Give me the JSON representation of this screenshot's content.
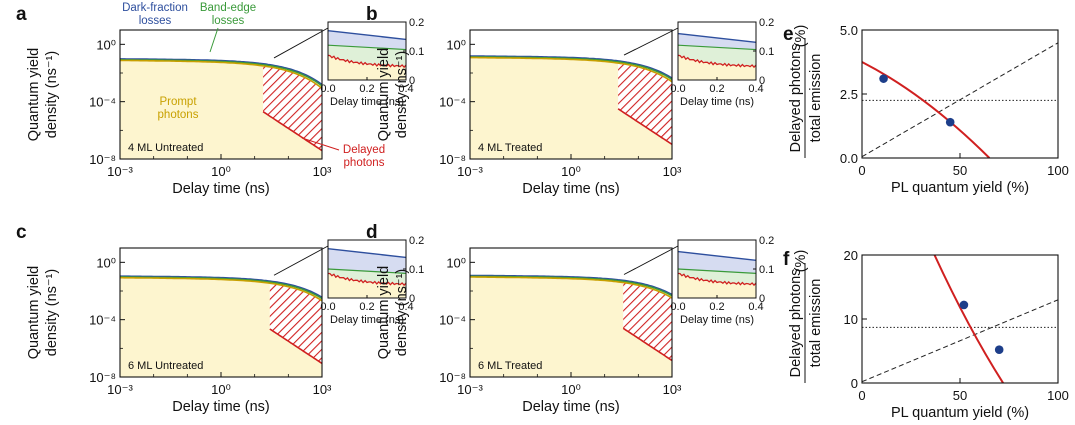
{
  "figure": {
    "decay_panels": [
      {
        "letter": "a",
        "sample": "4 ML Untreated",
        "plateau_y_exp": -1.1,
        "knee_x_exp": 1.2,
        "delayed": true,
        "annotations": true
      },
      {
        "letter": "b",
        "sample": "4 ML Treated",
        "plateau_y_exp": -0.9,
        "knee_x_exp": 1.35,
        "delayed": true,
        "annotations": false
      },
      {
        "letter": "c",
        "sample": "6 ML Untreated",
        "plateau_y_exp": -1.05,
        "knee_x_exp": 1.4,
        "delayed": true,
        "annotations": false
      },
      {
        "letter": "d",
        "sample": "6 ML Treated",
        "plateau_y_exp": -1.0,
        "knee_x_exp": 1.5,
        "delayed": true,
        "annotations": false
      }
    ],
    "decay_axes": {
      "xlabel": "Delay time (ns)",
      "ylabel_line1": "Quantum yield",
      "ylabel_line2": "density (ns⁻¹)",
      "xticks": [
        "10⁻³",
        "10⁰",
        "10³"
      ],
      "yticks": [
        "10⁰",
        "10⁻⁴",
        "10⁻⁸"
      ]
    },
    "inset_axes": {
      "xlabel": "Delay time (ns)",
      "xticks": [
        "0.0",
        "0.2",
        "0.4"
      ],
      "yticks": [
        "0.2",
        "0.1",
        "0"
      ]
    },
    "annotations": {
      "dark_fraction_1": "Dark-fraction",
      "dark_fraction_2": "losses",
      "band_edge_1": "Band-edge",
      "band_edge_2": "losses",
      "prompt_1": "Prompt",
      "prompt_2": "photons",
      "delayed_1": "Delayed",
      "delayed_2": "photons"
    },
    "scatter_axes": {
      "xlabel": "PL quantum yield (%)",
      "ylabel_num": "Delayed photons",
      "ylabel_den": "total emission",
      "ylabel_unit": "(%)"
    },
    "colors": {
      "dark_fraction": "#2e4f9e",
      "band_edge": "#3a9a3a",
      "prompt": "#c8a000",
      "delayed": "#d02020",
      "blue_fill": "#d6dcf1",
      "green_fill": "#dff0d8",
      "yellow_fill": "#fdf5cf",
      "marker": "#1d3e8a"
    }
  },
  "chart_data": [
    {
      "type": "line",
      "panel": "a",
      "title": "4 ML Untreated",
      "xlabel": "Delay time (ns)",
      "ylabel": "Quantum yield density (ns⁻¹)",
      "xscale": "log",
      "yscale": "log",
      "xlim": [
        0.001,
        1000
      ],
      "ylim": [
        1e-08,
        10
      ],
      "series": [
        {
          "name": "Dark-fraction losses"
        },
        {
          "name": "Band-edge losses"
        },
        {
          "name": "Prompt photons"
        },
        {
          "name": "Delayed photons"
        }
      ],
      "inset": {
        "xlabel": "Delay time (ns)",
        "xlim": [
          0,
          0.4
        ],
        "ylim": [
          0,
          0.2
        ]
      }
    },
    {
      "type": "line",
      "panel": "b",
      "title": "4 ML Treated",
      "xlabel": "Delay time (ns)",
      "ylabel": "Quantum yield density (ns⁻¹)",
      "xscale": "log",
      "yscale": "log",
      "xlim": [
        0.001,
        1000
      ],
      "ylim": [
        1e-08,
        10
      ],
      "inset": {
        "xlabel": "Delay time (ns)",
        "xlim": [
          0,
          0.4
        ],
        "ylim": [
          0,
          0.2
        ]
      }
    },
    {
      "type": "line",
      "panel": "c",
      "title": "6 ML Untreated",
      "xlabel": "Delay time (ns)",
      "ylabel": "Quantum yield density (ns⁻¹)",
      "xscale": "log",
      "yscale": "log",
      "xlim": [
        0.001,
        1000
      ],
      "ylim": [
        1e-08,
        10
      ],
      "inset": {
        "xlabel": "Delay time (ns)",
        "xlim": [
          0,
          0.4
        ],
        "ylim": [
          0,
          0.2
        ]
      }
    },
    {
      "type": "line",
      "panel": "d",
      "title": "6 ML Treated",
      "xlabel": "Delay time (ns)",
      "ylabel": "Quantum yield density (ns⁻¹)",
      "xscale": "log",
      "yscale": "log",
      "xlim": [
        0.001,
        1000
      ],
      "ylim": [
        1e-08,
        10
      ],
      "inset": {
        "xlabel": "Delay time (ns)",
        "xlim": [
          0,
          0.4
        ],
        "ylim": [
          0,
          0.2
        ]
      }
    },
    {
      "type": "scatter",
      "panel": "e",
      "xlabel": "PL quantum yield (%)",
      "ylabel": "Delayed photons / total emission (%)",
      "xlim": [
        0,
        100
      ],
      "ylim": [
        0,
        5
      ],
      "xticks": [
        0,
        50,
        100
      ],
      "yticks": [
        0.0,
        2.5,
        5.0
      ],
      "points": [
        {
          "x": 11,
          "y": 3.1
        },
        {
          "x": 45,
          "y": 1.4
        }
      ],
      "fit_line": [
        [
          0,
          3.75
        ],
        [
          65,
          0
        ]
      ],
      "dashed_line": [
        [
          0,
          0.05
        ],
        [
          100,
          4.5
        ]
      ],
      "dotted_level": 2.25
    },
    {
      "type": "scatter",
      "panel": "f",
      "xlabel": "PL quantum yield (%)",
      "ylabel": "Delayed photons / total emission (%)",
      "xlim": [
        0,
        100
      ],
      "ylim": [
        0,
        20
      ],
      "xticks": [
        0,
        50,
        100
      ],
      "yticks": [
        0,
        10,
        20
      ],
      "points": [
        {
          "x": 52,
          "y": 12.2
        },
        {
          "x": 70,
          "y": 5.2
        }
      ],
      "fit_line": [
        [
          37,
          20
        ],
        [
          72,
          0
        ]
      ],
      "dashed_line": [
        [
          0,
          0.2
        ],
        [
          100,
          13
        ]
      ],
      "dotted_level": 8.7
    }
  ]
}
